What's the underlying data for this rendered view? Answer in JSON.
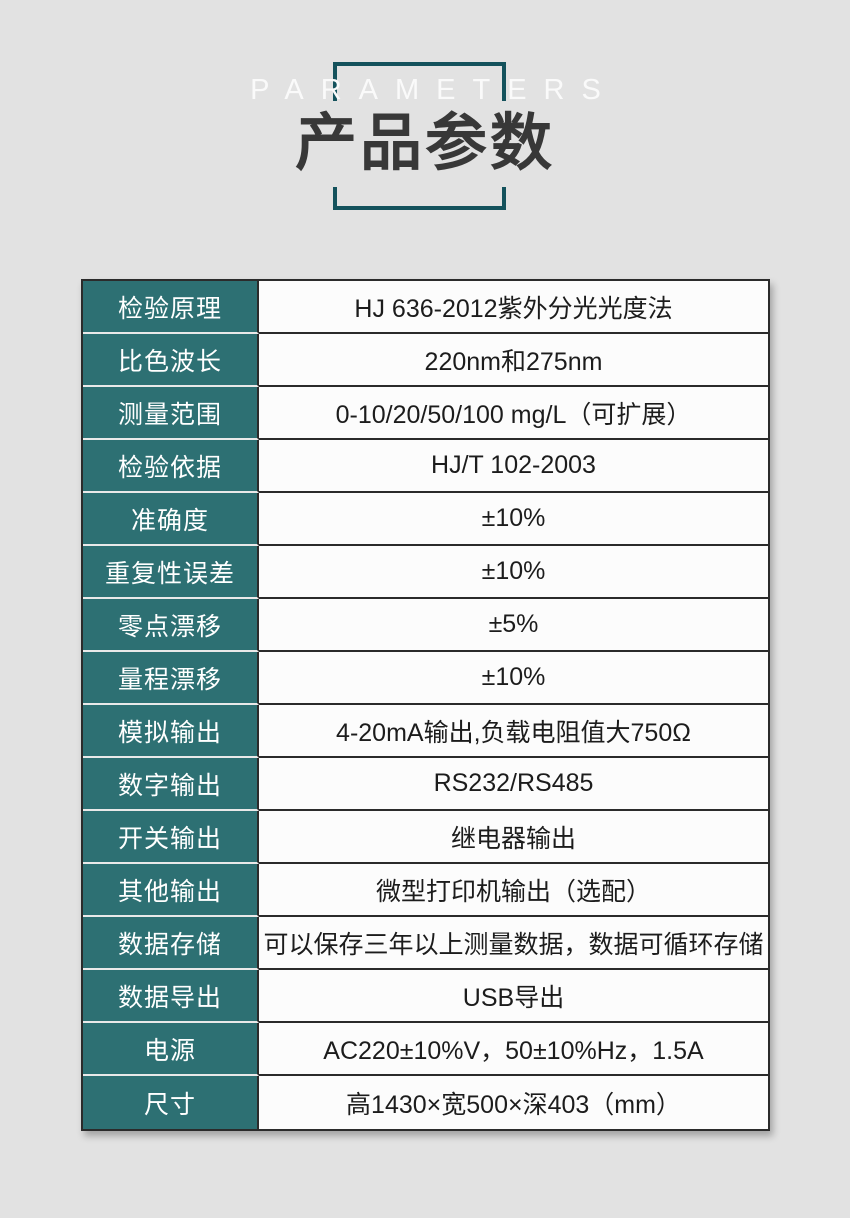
{
  "page": {
    "background_color": "#e2e2e2",
    "accent_teal": "#2d7073",
    "frame_teal": "#14525c"
  },
  "header": {
    "eyebrow": "PARAMETERS",
    "title": "产品参数"
  },
  "spec_table": {
    "rows": [
      {
        "label": "检验原理",
        "value": "HJ 636-2012紫外分光光度法"
      },
      {
        "label": "比色波长",
        "value": "220nm和275nm"
      },
      {
        "label": "测量范围",
        "value": "0-10/20/50/100 mg/L（可扩展）"
      },
      {
        "label": "检验依据",
        "value": "HJ/T 102-2003"
      },
      {
        "label": "准确度",
        "value": "±10%"
      },
      {
        "label": "重复性误差",
        "value": "±10%"
      },
      {
        "label": "零点漂移",
        "value": "±5%"
      },
      {
        "label": "量程漂移",
        "value": "±10%"
      },
      {
        "label": "模拟输出",
        "value": "4-20mA输出,负载电阻值大750Ω"
      },
      {
        "label": "数字输出",
        "value": "RS232/RS485"
      },
      {
        "label": "开关输出",
        "value": "继电器输出"
      },
      {
        "label": "其他输出",
        "value": "微型打印机输出（选配）"
      },
      {
        "label": "数据存储",
        "value": "可以保存三年以上测量数据，数据可循环存储"
      },
      {
        "label": "数据导出",
        "value": "USB导出"
      },
      {
        "label": "电源",
        "value": "AC220±10%V，50±10%Hz，1.5A"
      },
      {
        "label": "尺寸",
        "value": "高1430×宽500×深403（mm）"
      }
    ]
  }
}
